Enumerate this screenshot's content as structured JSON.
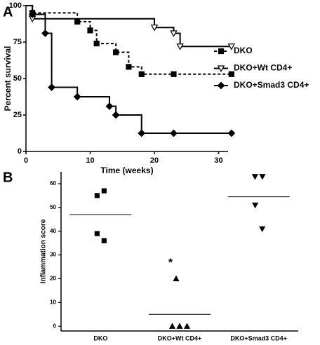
{
  "chart_data": [
    {
      "type": "line",
      "step": "post",
      "panel": "A",
      "xlabel": "Time (weeks)",
      "ylabel": "Percent survival",
      "xlim": [
        0,
        33
      ],
      "xticks": [
        0,
        10,
        20,
        30
      ],
      "ylim": [
        0,
        100
      ],
      "yticks": [
        0,
        25,
        50,
        75,
        100
      ],
      "legend": "right",
      "series": [
        {
          "name": "DKO",
          "color": "#000000",
          "dash": true,
          "marker": "square",
          "x": [
            0,
            1,
            8,
            10,
            11,
            14,
            16,
            18,
            23,
            32
          ],
          "values": [
            100,
            95,
            89,
            83,
            74,
            68,
            58,
            53,
            53,
            53
          ]
        },
        {
          "name": "DKO+Wt CD4+",
          "color": "#000000",
          "dash": false,
          "marker": "triangle-down-open",
          "x": [
            0,
            1,
            20,
            23,
            24,
            32
          ],
          "values": [
            100,
            91,
            85,
            81,
            72,
            72
          ]
        },
        {
          "name": "DKO+Smad3 CD4+",
          "color": "#000000",
          "dash": false,
          "marker": "diamond",
          "x": [
            0,
            1,
            3,
            4,
            8,
            13,
            14,
            18,
            23,
            32
          ],
          "values": [
            100,
            94,
            81,
            44,
            37.5,
            31,
            25,
            12.5,
            12.5,
            12.5
          ]
        }
      ]
    },
    {
      "type": "scatter",
      "panel": "B",
      "ylabel": "Inflammation score",
      "categories": [
        "DKO",
        "DKO+Wt CD4+",
        "DKO+Smad3 CD4+"
      ],
      "ylim": [
        -2,
        65
      ],
      "yticks": [
        0,
        10,
        20,
        30,
        40,
        50,
        60
      ],
      "values": [
        [
          55,
          57,
          39,
          36
        ],
        [
          20,
          0,
          0,
          0
        ],
        [
          63,
          63,
          51,
          41
        ]
      ],
      "means": [
        47,
        5,
        54.5
      ],
      "markers": [
        "square",
        "triangle-up",
        "triangle-down"
      ],
      "annotation": "*"
    }
  ]
}
